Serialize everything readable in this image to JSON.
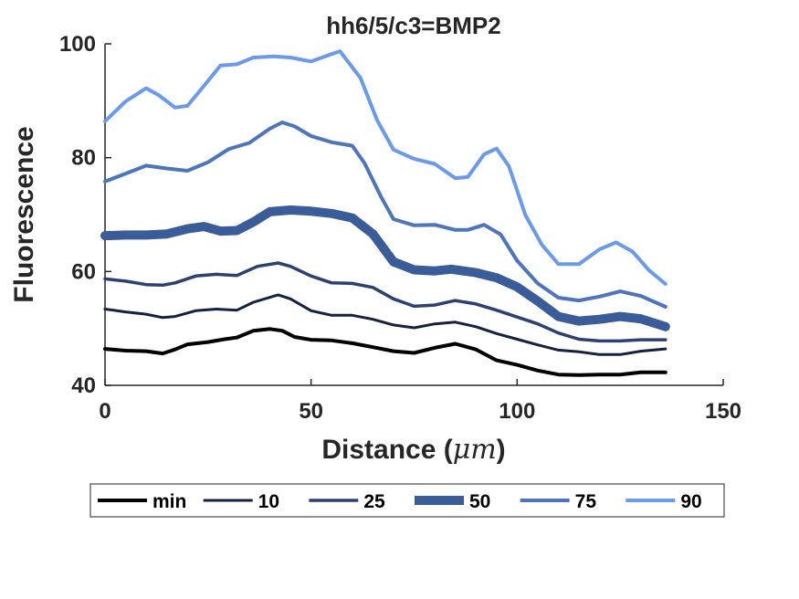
{
  "chart_data": {
    "type": "line",
    "title": "hh6/5/c3=BMP2",
    "xlabel": "Distance (",
    "xlabel_unit": "μm",
    "xlabel_close": ")",
    "ylabel": "Fluorescence",
    "xlim": [
      0,
      150
    ],
    "ylim": [
      40,
      100
    ],
    "xticks": [
      0,
      50,
      100,
      150
    ],
    "yticks": [
      40,
      60,
      80,
      100
    ],
    "grid": false,
    "legend_position": "bottom-outside",
    "series": [
      {
        "name": "min",
        "color": "#000000",
        "width": 4,
        "points": [
          [
            0,
            46.4
          ],
          [
            5,
            46.1
          ],
          [
            10,
            46.0
          ],
          [
            14,
            45.6
          ],
          [
            17,
            46.3
          ],
          [
            20,
            47.2
          ],
          [
            25,
            47.6
          ],
          [
            29,
            48.1
          ],
          [
            32,
            48.4
          ],
          [
            36,
            49.6
          ],
          [
            40,
            49.9
          ],
          [
            43,
            49.6
          ],
          [
            46,
            48.5
          ],
          [
            50,
            48.0
          ],
          [
            55,
            47.9
          ],
          [
            60,
            47.4
          ],
          [
            65,
            46.7
          ],
          [
            70,
            46.0
          ],
          [
            75,
            45.7
          ],
          [
            80,
            46.6
          ],
          [
            85,
            47.3
          ],
          [
            90,
            46.3
          ],
          [
            95,
            44.4
          ],
          [
            100,
            43.6
          ],
          [
            105,
            42.6
          ],
          [
            110,
            41.9
          ],
          [
            115,
            41.8
          ],
          [
            120,
            41.9
          ],
          [
            125,
            41.9
          ],
          [
            130,
            42.3
          ],
          [
            136,
            42.3
          ]
        ]
      },
      {
        "name": "10",
        "color": "#14223f",
        "width": 3,
        "points": [
          [
            0,
            53.4
          ],
          [
            5,
            52.9
          ],
          [
            10,
            52.5
          ],
          [
            14,
            51.9
          ],
          [
            17,
            52.1
          ],
          [
            22,
            53.1
          ],
          [
            27,
            53.4
          ],
          [
            32,
            53.2
          ],
          [
            36,
            54.6
          ],
          [
            42,
            55.9
          ],
          [
            45,
            55.2
          ],
          [
            50,
            53.1
          ],
          [
            55,
            52.3
          ],
          [
            60,
            52.3
          ],
          [
            65,
            51.6
          ],
          [
            70,
            50.6
          ],
          [
            75,
            50.1
          ],
          [
            80,
            50.8
          ],
          [
            85,
            51.1
          ],
          [
            90,
            50.3
          ],
          [
            95,
            49.1
          ],
          [
            100,
            48.1
          ],
          [
            105,
            47.1
          ],
          [
            110,
            46.2
          ],
          [
            115,
            45.9
          ],
          [
            120,
            45.4
          ],
          [
            125,
            45.4
          ],
          [
            130,
            46.0
          ],
          [
            136,
            46.4
          ]
        ]
      },
      {
        "name": "25",
        "color": "#2c4170",
        "width": 3.5,
        "points": [
          [
            0,
            58.7
          ],
          [
            5,
            58.3
          ],
          [
            10,
            57.7
          ],
          [
            14,
            57.6
          ],
          [
            17,
            58.0
          ],
          [
            22,
            59.2
          ],
          [
            27,
            59.5
          ],
          [
            32,
            59.3
          ],
          [
            37,
            60.9
          ],
          [
            42,
            61.5
          ],
          [
            45,
            60.9
          ],
          [
            50,
            59.2
          ],
          [
            55,
            58.0
          ],
          [
            60,
            57.9
          ],
          [
            65,
            57.2
          ],
          [
            70,
            55.2
          ],
          [
            75,
            53.9
          ],
          [
            80,
            54.1
          ],
          [
            85,
            54.9
          ],
          [
            90,
            54.3
          ],
          [
            95,
            53.2
          ],
          [
            100,
            52.0
          ],
          [
            105,
            50.8
          ],
          [
            110,
            49.2
          ],
          [
            115,
            48.1
          ],
          [
            120,
            47.8
          ],
          [
            125,
            47.8
          ],
          [
            130,
            48.0
          ],
          [
            136,
            48.0
          ]
        ]
      },
      {
        "name": "50",
        "color": "#3a5c98",
        "width": 10,
        "points": [
          [
            0,
            66.3
          ],
          [
            5,
            66.4
          ],
          [
            10,
            66.4
          ],
          [
            15,
            66.6
          ],
          [
            20,
            67.5
          ],
          [
            24,
            67.9
          ],
          [
            28,
            67.1
          ],
          [
            32,
            67.2
          ],
          [
            36,
            68.7
          ],
          [
            40,
            70.5
          ],
          [
            45,
            70.8
          ],
          [
            50,
            70.6
          ],
          [
            55,
            70.2
          ],
          [
            60,
            69.4
          ],
          [
            65,
            66.6
          ],
          [
            70,
            61.7
          ],
          [
            75,
            60.3
          ],
          [
            80,
            60.1
          ],
          [
            84,
            60.4
          ],
          [
            90,
            59.8
          ],
          [
            95,
            58.9
          ],
          [
            100,
            57.3
          ],
          [
            105,
            54.8
          ],
          [
            110,
            52.1
          ],
          [
            115,
            51.3
          ],
          [
            120,
            51.6
          ],
          [
            125,
            52.1
          ],
          [
            130,
            51.7
          ],
          [
            136,
            50.3
          ]
        ]
      },
      {
        "name": "75",
        "color": "#4e74bb",
        "width": 4,
        "points": [
          [
            0,
            75.8
          ],
          [
            5,
            77.2
          ],
          [
            10,
            78.6
          ],
          [
            15,
            78.1
          ],
          [
            20,
            77.7
          ],
          [
            25,
            79.2
          ],
          [
            30,
            81.5
          ],
          [
            35,
            82.6
          ],
          [
            40,
            85.1
          ],
          [
            43,
            86.2
          ],
          [
            46,
            85.5
          ],
          [
            50,
            83.8
          ],
          [
            55,
            82.7
          ],
          [
            60,
            82.1
          ],
          [
            63,
            79.0
          ],
          [
            67,
            73.1
          ],
          [
            70,
            69.2
          ],
          [
            75,
            68.1
          ],
          [
            80,
            68.2
          ],
          [
            85,
            67.3
          ],
          [
            88,
            67.3
          ],
          [
            92,
            68.2
          ],
          [
            96,
            66.5
          ],
          [
            100,
            61.9
          ],
          [
            105,
            57.9
          ],
          [
            110,
            55.4
          ],
          [
            115,
            54.9
          ],
          [
            120,
            55.6
          ],
          [
            125,
            56.5
          ],
          [
            130,
            55.7
          ],
          [
            136,
            53.8
          ]
        ]
      },
      {
        "name": "90",
        "color": "#6b9aeb",
        "width": 4,
        "points": [
          [
            0,
            86.4
          ],
          [
            5,
            89.9
          ],
          [
            10,
            92.2
          ],
          [
            13,
            91.0
          ],
          [
            17,
            88.8
          ],
          [
            20,
            89.1
          ],
          [
            24,
            92.6
          ],
          [
            28,
            96.2
          ],
          [
            32,
            96.4
          ],
          [
            36,
            97.6
          ],
          [
            41,
            97.8
          ],
          [
            45,
            97.6
          ],
          [
            50,
            96.9
          ],
          [
            55,
            98.2
          ],
          [
            57,
            98.7
          ],
          [
            62,
            94.0
          ],
          [
            66,
            86.6
          ],
          [
            70,
            81.4
          ],
          [
            75,
            79.8
          ],
          [
            80,
            78.9
          ],
          [
            85,
            76.4
          ],
          [
            88,
            76.6
          ],
          [
            92,
            80.6
          ],
          [
            95,
            81.6
          ],
          [
            98,
            78.5
          ],
          [
            102,
            69.9
          ],
          [
            106,
            64.7
          ],
          [
            110,
            61.3
          ],
          [
            115,
            61.3
          ],
          [
            120,
            63.9
          ],
          [
            124,
            65.1
          ],
          [
            128,
            63.5
          ],
          [
            132,
            60.2
          ],
          [
            136,
            57.8
          ]
        ]
      }
    ]
  }
}
